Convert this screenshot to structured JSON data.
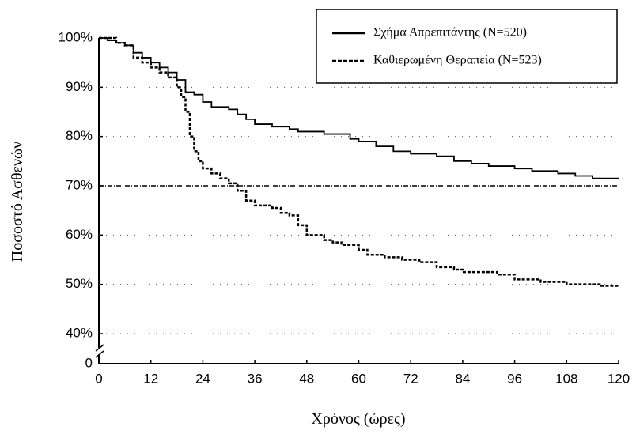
{
  "chart_data": {
    "type": "line",
    "step": true,
    "xlabel": "Χρόνος (ώρες)",
    "ylabel": "Ποσοστό Ασθενών",
    "xlim": [
      0,
      120
    ],
    "xticks": [
      0,
      12,
      24,
      36,
      48,
      60,
      72,
      84,
      96,
      108,
      120
    ],
    "ylim": [
      0,
      100
    ],
    "ybreak": [
      0,
      40
    ],
    "yticks": [
      0,
      {
        "value": 40,
        "label": "40%"
      },
      {
        "value": 50,
        "label": "50%"
      },
      {
        "value": 60,
        "label": "60%"
      },
      {
        "value": 70,
        "label": "70%"
      },
      {
        "value": 80,
        "label": "80%"
      },
      {
        "value": 90,
        "label": "90%"
      },
      {
        "value": 100,
        "label": "100%"
      }
    ],
    "grid": true,
    "reference_line": 70,
    "legend": "upper right",
    "series": [
      {
        "name": "Σχήμα Απρεπιτάντης (N=520)",
        "color": "#000000",
        "dash": false,
        "x": [
          0,
          2,
          4,
          6,
          8,
          10,
          12,
          14,
          16,
          18,
          20,
          22,
          24,
          26,
          30,
          32,
          34,
          36,
          40,
          44,
          46,
          52,
          58,
          60,
          64,
          68,
          72,
          78,
          82,
          86,
          90,
          96,
          100,
          106,
          110,
          114,
          120
        ],
        "values": [
          100,
          99.5,
          99,
          98.5,
          97,
          96,
          95,
          94,
          93,
          91.5,
          89,
          88.5,
          87,
          86,
          85.5,
          84.5,
          83.5,
          82.5,
          82,
          81.5,
          81,
          80.5,
          79.5,
          79,
          78,
          77,
          76.5,
          76,
          75,
          74.5,
          74,
          73.5,
          73,
          72.5,
          72,
          71.5,
          71.5
        ]
      },
      {
        "name": "Καθιερωμένη Θεραπεία (N=523)",
        "color": "#000000",
        "dash": true,
        "x": [
          0,
          4,
          6,
          8,
          10,
          12,
          14,
          16,
          18,
          19,
          20,
          21,
          22,
          23,
          24,
          26,
          28,
          30,
          32,
          34,
          36,
          40,
          42,
          44,
          46,
          48,
          52,
          54,
          56,
          60,
          62,
          66,
          70,
          74,
          78,
          82,
          84,
          92,
          96,
          102,
          108,
          116,
          120
        ],
        "values": [
          100,
          99,
          98.5,
          96,
          95,
          94,
          93,
          92,
          90,
          88,
          85,
          80,
          77,
          75,
          73.5,
          72.5,
          71.5,
          70.5,
          69,
          67,
          66,
          65.5,
          64.5,
          64,
          62,
          60,
          59,
          58.5,
          58,
          57,
          56,
          55.5,
          55,
          54.5,
          53.5,
          53,
          52.5,
          52,
          51,
          50.5,
          50,
          49.7,
          49.7
        ]
      }
    ]
  }
}
